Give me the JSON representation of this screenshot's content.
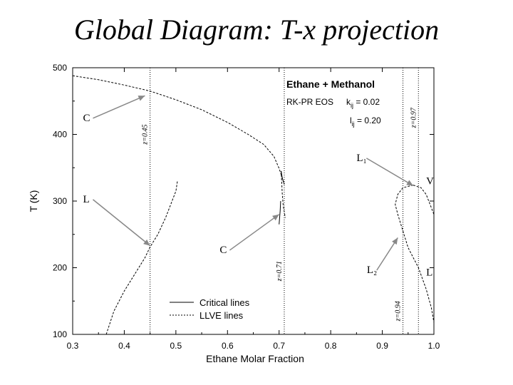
{
  "slide_title": "Global Diagram: T-x projection",
  "chart_data": {
    "type": "line",
    "title": "Ethane + Methanol",
    "eos_label": "RK-PR EOS",
    "params": [
      "k",
      "ij",
      " = 0.02",
      "l",
      "ij",
      " = 0.20"
    ],
    "xlabel": "Ethane Molar Fraction",
    "ylabel": "T (K)",
    "xlim": [
      0.3,
      1.0
    ],
    "ylim": [
      100,
      500
    ],
    "x_ticks": [
      "0.3",
      "0.4",
      "0.5",
      "0.6",
      "0.7",
      "0.8",
      "0.9",
      "1.0"
    ],
    "y_ticks": [
      "100",
      "200",
      "300",
      "400",
      "500"
    ],
    "legend": {
      "position": "bottom-left",
      "entries": [
        "Critical lines",
        "LLVE lines"
      ]
    },
    "vertical_lines": [
      {
        "x": 0.45,
        "label": "z=0.45"
      },
      {
        "x": 0.71,
        "label": "z=0.71"
      },
      {
        "x": 0.94,
        "label": "z=0.94"
      },
      {
        "x": 0.97,
        "label": "z=0.97"
      }
    ],
    "series": [
      {
        "name": "Critical lines",
        "style": "solid",
        "segments": [
          [
            [
              0.71,
              325
            ],
            [
              0.706,
              335
            ],
            [
              0.704,
              345
            ]
          ],
          [
            [
              0.7,
              265
            ],
            [
              0.702,
              285
            ],
            [
              0.703,
              300
            ]
          ]
        ]
      },
      {
        "name": "LLVE lines",
        "style": "dashed",
        "segments": [
          [
            [
              0.3,
              488
            ],
            [
              0.35,
              482
            ],
            [
              0.4,
              474
            ],
            [
              0.45,
              465
            ],
            [
              0.5,
              452
            ],
            [
              0.55,
              437
            ],
            [
              0.6,
              418
            ],
            [
              0.64,
              400
            ],
            [
              0.67,
              385
            ],
            [
              0.69,
              367
            ],
            [
              0.7,
              349
            ],
            [
              0.706,
              335
            ],
            [
              0.71,
              325
            ]
          ],
          [
            [
              0.704,
              345
            ],
            [
              0.705,
              330
            ],
            [
              0.706,
              312
            ],
            [
              0.708,
              293
            ],
            [
              0.712,
              275
            ]
          ],
          [
            [
              0.365,
              100
            ],
            [
              0.38,
              135
            ],
            [
              0.4,
              165
            ],
            [
              0.42,
              190
            ],
            [
              0.44,
              215
            ],
            [
              0.45,
              231
            ],
            [
              0.465,
              250
            ],
            [
              0.48,
              275
            ],
            [
              0.5,
              315
            ],
            [
              0.503,
              330
            ]
          ],
          [
            [
              0.96,
              324
            ],
            [
              0.975,
              320
            ],
            [
              0.985,
              310
            ],
            [
              0.995,
              290
            ],
            [
              1.0,
              280
            ]
          ],
          [
            [
              0.96,
              324
            ],
            [
              0.94,
              320
            ],
            [
              0.93,
              310
            ],
            [
              0.925,
              295
            ],
            [
              0.93,
              280
            ],
            [
              0.95,
              230
            ],
            [
              0.97,
              200
            ],
            [
              0.985,
              168
            ],
            [
              0.995,
              140
            ],
            [
              1.0,
              118
            ]
          ]
        ]
      }
    ],
    "annotations": [
      {
        "text": "C",
        "at": [
          0.32,
          420
        ],
        "arrow_to": [
          0.44,
          458
        ]
      },
      {
        "text": "L",
        "at": [
          0.32,
          298
        ],
        "arrow_to": [
          0.45,
          233
        ]
      },
      {
        "text": "C",
        "at": [
          0.585,
          222
        ],
        "arrow_to": [
          0.7,
          280
        ]
      },
      {
        "text": "L₁",
        "at": [
          0.85,
          360
        ],
        "arrow_to": [
          0.96,
          323
        ]
      },
      {
        "text": "V",
        "at": [
          0.985,
          325
        ]
      },
      {
        "text": "L₂",
        "at": [
          0.87,
          192
        ],
        "arrow_to": [
          0.93,
          245
        ]
      },
      {
        "text": "L",
        "at": [
          0.985,
          188
        ]
      }
    ]
  }
}
